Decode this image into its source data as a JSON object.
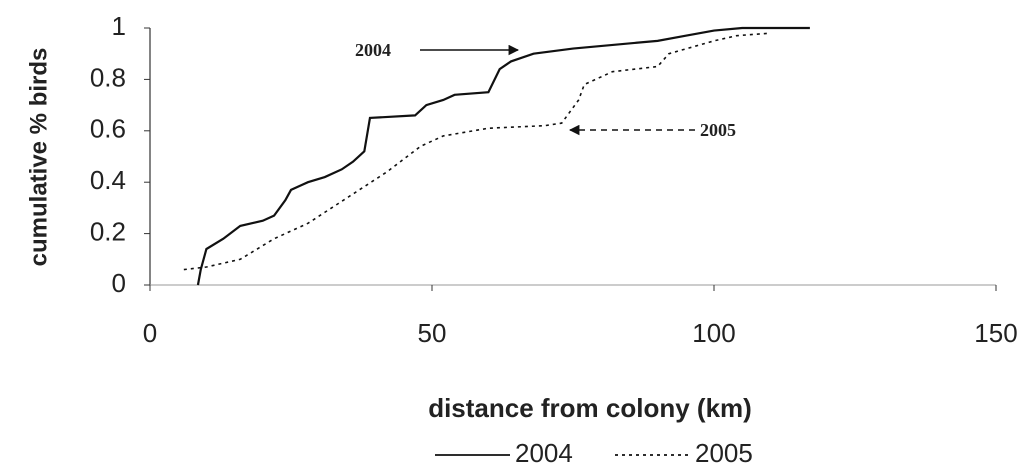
{
  "chart_data": {
    "type": "line",
    "x_label": "distance  from colony (km)",
    "y_label": "cumulative % birds",
    "xlim": [
      0,
      150
    ],
    "xticks": [
      0,
      50,
      100,
      150
    ],
    "ylim": [
      0,
      1
    ],
    "yticks": [
      0,
      0.2,
      0.4,
      0.6,
      0.8,
      1
    ],
    "grid": false,
    "legend": "bottom",
    "annotations": [
      "2004",
      "2005"
    ],
    "series": [
      {
        "name": "2004",
        "color": "#111111",
        "style": "solid",
        "x": [
          8.5,
          9,
          10,
          13,
          16,
          20,
          22,
          24,
          25,
          27,
          28,
          31,
          34,
          36,
          38,
          39,
          47,
          49,
          52,
          54,
          60,
          62,
          64,
          68,
          75,
          90,
          95,
          100,
          105,
          117
        ],
        "values": [
          0,
          0.06,
          0.14,
          0.18,
          0.23,
          0.25,
          0.27,
          0.33,
          0.37,
          0.39,
          0.4,
          0.42,
          0.45,
          0.48,
          0.52,
          0.65,
          0.66,
          0.7,
          0.72,
          0.74,
          0.75,
          0.84,
          0.87,
          0.9,
          0.92,
          0.95,
          0.97,
          0.99,
          1,
          1
        ]
      },
      {
        "name": "2005",
        "color": "#111111",
        "style": "dotted",
        "x": [
          6,
          10,
          16,
          22,
          28,
          35,
          42,
          48,
          52,
          60,
          70,
          73,
          76,
          77,
          82,
          90,
          92,
          100,
          104,
          110
        ],
        "values": [
          0.06,
          0.07,
          0.1,
          0.18,
          0.24,
          0.34,
          0.44,
          0.54,
          0.58,
          0.61,
          0.62,
          0.63,
          0.72,
          0.78,
          0.83,
          0.85,
          0.9,
          0.95,
          0.97,
          0.98
        ]
      }
    ]
  }
}
